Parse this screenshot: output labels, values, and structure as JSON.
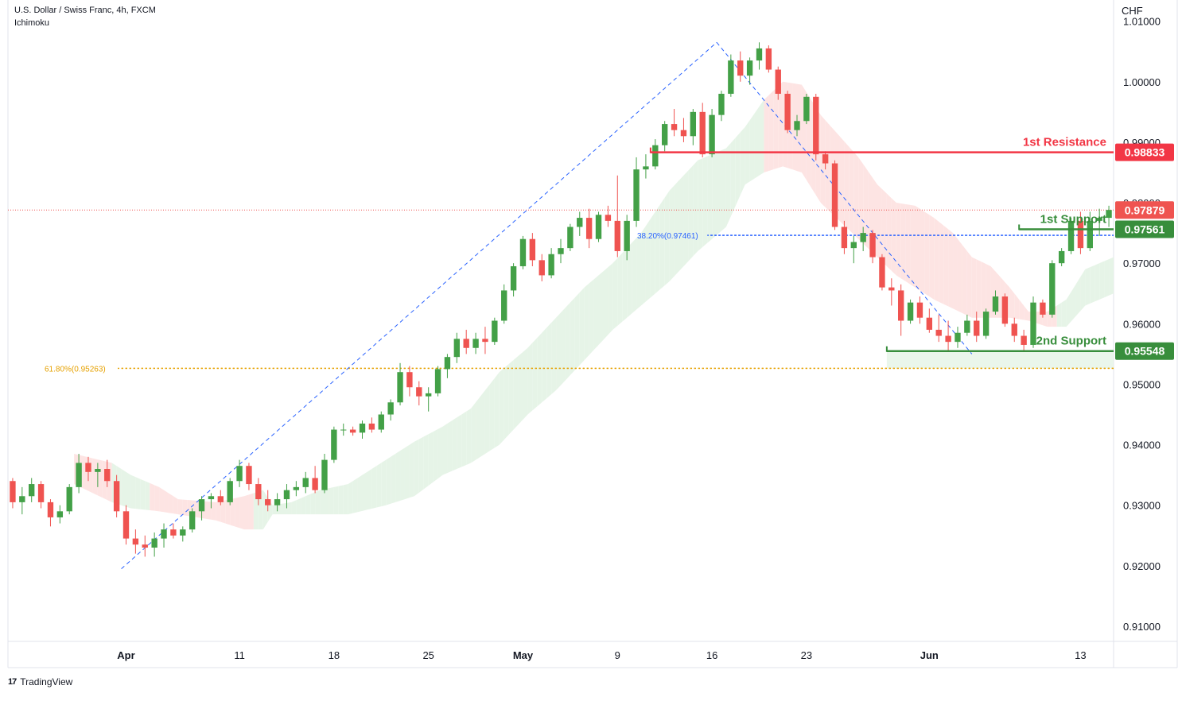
{
  "header": {
    "symbol_line": "U.S. Dollar / Swiss Franc, 4h, FXCM",
    "indicator": "Ichimoku"
  },
  "footer": {
    "brand": "TradingView"
  },
  "colors": {
    "bull": "#43a047",
    "bear": "#ef5350",
    "resistance": "#f23645",
    "support": "#388e3c",
    "fib382": "#2962ff",
    "fib618": "#e6a100",
    "trend": "#2962ff",
    "cloud_bull": "#e6f4e7",
    "cloud_bear": "#fde4e3",
    "last_price": "#ef5350"
  },
  "chart_data": {
    "type": "candlestick",
    "currency": "CHF",
    "ylim": [
      0.9075,
      1.0135
    ],
    "y_ticks": [
      "1.01000",
      "1.00000",
      "0.99000",
      "0.98000",
      "0.97000",
      "0.96000",
      "0.95000",
      "0.94000",
      "0.93000",
      "0.92000",
      "0.91000"
    ],
    "y_tick_values": [
      1.01,
      1.0,
      0.99,
      0.98,
      0.97,
      0.96,
      0.95,
      0.94,
      0.93,
      0.92,
      0.91
    ],
    "x_range": [
      0,
      117
    ],
    "x_ticks": [
      {
        "label": "Apr",
        "x": 12.5,
        "bold": true
      },
      {
        "label": "11",
        "x": 24.5,
        "bold": false
      },
      {
        "label": "18",
        "x": 34.5,
        "bold": false
      },
      {
        "label": "25",
        "x": 44.5,
        "bold": false
      },
      {
        "label": "May",
        "x": 54.5,
        "bold": true
      },
      {
        "label": "9",
        "x": 64.5,
        "bold": false
      },
      {
        "label": "16",
        "x": 74.5,
        "bold": false
      },
      {
        "label": "23",
        "x": 84.5,
        "bold": false
      },
      {
        "label": "Jun",
        "x": 97.5,
        "bold": true
      },
      {
        "label": "13",
        "x": 113.5,
        "bold": false
      }
    ],
    "candles": [
      [
        0.934,
        0.9345,
        0.9295,
        0.9305
      ],
      [
        0.9305,
        0.933,
        0.9285,
        0.9315
      ],
      [
        0.9315,
        0.9345,
        0.9305,
        0.9335
      ],
      [
        0.9335,
        0.934,
        0.9295,
        0.9305
      ],
      [
        0.9305,
        0.931,
        0.9265,
        0.928
      ],
      [
        0.928,
        0.93,
        0.927,
        0.929
      ],
      [
        0.929,
        0.9335,
        0.9285,
        0.933
      ],
      [
        0.933,
        0.9385,
        0.932,
        0.937
      ],
      [
        0.937,
        0.938,
        0.934,
        0.9355
      ],
      [
        0.9355,
        0.937,
        0.933,
        0.936
      ],
      [
        0.936,
        0.9375,
        0.933,
        0.934
      ],
      [
        0.934,
        0.935,
        0.928,
        0.929
      ],
      [
        0.929,
        0.93,
        0.9235,
        0.9245
      ],
      [
        0.9245,
        0.926,
        0.922,
        0.9235
      ],
      [
        0.9235,
        0.925,
        0.9215,
        0.923
      ],
      [
        0.923,
        0.9255,
        0.9215,
        0.9245
      ],
      [
        0.9245,
        0.927,
        0.923,
        0.926
      ],
      [
        0.926,
        0.927,
        0.9245,
        0.925
      ],
      [
        0.925,
        0.9265,
        0.924,
        0.926
      ],
      [
        0.926,
        0.9295,
        0.9255,
        0.929
      ],
      [
        0.929,
        0.9315,
        0.9275,
        0.931
      ],
      [
        0.931,
        0.932,
        0.9295,
        0.9315
      ],
      [
        0.9315,
        0.9325,
        0.93,
        0.9305
      ],
      [
        0.9305,
        0.9345,
        0.93,
        0.934
      ],
      [
        0.934,
        0.9375,
        0.933,
        0.9365
      ],
      [
        0.9365,
        0.937,
        0.9325,
        0.9335
      ],
      [
        0.9335,
        0.9345,
        0.93,
        0.931
      ],
      [
        0.931,
        0.9325,
        0.929,
        0.93
      ],
      [
        0.93,
        0.932,
        0.929,
        0.931
      ],
      [
        0.931,
        0.9335,
        0.9295,
        0.9325
      ],
      [
        0.9325,
        0.934,
        0.9315,
        0.933
      ],
      [
        0.933,
        0.9355,
        0.932,
        0.9345
      ],
      [
        0.9345,
        0.9365,
        0.932,
        0.9325
      ],
      [
        0.9325,
        0.9385,
        0.932,
        0.9375
      ],
      [
        0.9375,
        0.943,
        0.937,
        0.9425
      ],
      [
        0.9425,
        0.9435,
        0.9415,
        0.9425
      ],
      [
        0.9425,
        0.943,
        0.9415,
        0.942
      ],
      [
        0.942,
        0.944,
        0.941,
        0.9435
      ],
      [
        0.9435,
        0.9445,
        0.942,
        0.9425
      ],
      [
        0.9425,
        0.9455,
        0.942,
        0.945
      ],
      [
        0.945,
        0.9475,
        0.944,
        0.947
      ],
      [
        0.947,
        0.9535,
        0.9465,
        0.952
      ],
      [
        0.952,
        0.953,
        0.948,
        0.9495
      ],
      [
        0.9495,
        0.9505,
        0.9465,
        0.948
      ],
      [
        0.948,
        0.9495,
        0.9455,
        0.9485
      ],
      [
        0.9485,
        0.953,
        0.948,
        0.9525
      ],
      [
        0.9525,
        0.955,
        0.951,
        0.9545
      ],
      [
        0.9545,
        0.9585,
        0.9535,
        0.9575
      ],
      [
        0.9575,
        0.959,
        0.955,
        0.956
      ],
      [
        0.956,
        0.9585,
        0.955,
        0.9575
      ],
      [
        0.9575,
        0.9595,
        0.955,
        0.957
      ],
      [
        0.957,
        0.961,
        0.9565,
        0.9605
      ],
      [
        0.9605,
        0.9665,
        0.96,
        0.9655
      ],
      [
        0.9655,
        0.97,
        0.9645,
        0.9695
      ],
      [
        0.9695,
        0.9745,
        0.969,
        0.974
      ],
      [
        0.974,
        0.975,
        0.9695,
        0.9705
      ],
      [
        0.9705,
        0.9715,
        0.967,
        0.968
      ],
      [
        0.968,
        0.9725,
        0.9675,
        0.9715
      ],
      [
        0.9715,
        0.974,
        0.97,
        0.9725
      ],
      [
        0.9725,
        0.9765,
        0.972,
        0.976
      ],
      [
        0.976,
        0.9785,
        0.9745,
        0.9775
      ],
      [
        0.9775,
        0.979,
        0.9725,
        0.974
      ],
      [
        0.974,
        0.9785,
        0.9735,
        0.978
      ],
      [
        0.978,
        0.9795,
        0.976,
        0.977
      ],
      [
        0.977,
        0.9845,
        0.971,
        0.972
      ],
      [
        0.972,
        0.978,
        0.9705,
        0.977
      ],
      [
        0.977,
        0.9875,
        0.976,
        0.9855
      ],
      [
        0.9855,
        0.988,
        0.984,
        0.986
      ],
      [
        0.986,
        0.9905,
        0.9855,
        0.9895
      ],
      [
        0.9895,
        0.9935,
        0.9885,
        0.993
      ],
      [
        0.993,
        0.9955,
        0.991,
        0.992
      ],
      [
        0.992,
        0.994,
        0.99,
        0.991
      ],
      [
        0.991,
        0.9955,
        0.9895,
        0.995
      ],
      [
        0.995,
        0.9965,
        0.9875,
        0.988
      ],
      [
        0.988,
        0.9955,
        0.9875,
        0.9945
      ],
      [
        0.9945,
        0.9985,
        0.9935,
        0.998
      ],
      [
        0.998,
        1.0045,
        0.9975,
        1.0035
      ],
      [
        1.0035,
        1.005,
        1.0,
        1.001
      ],
      [
        1.001,
        1.004,
        0.9995,
        1.0035
      ],
      [
        1.0035,
        1.0065,
        1.002,
        1.0055
      ],
      [
        1.0055,
        1.006,
        1.0015,
        1.002
      ],
      [
        1.002,
        1.0025,
        0.997,
        0.998
      ],
      [
        0.998,
        0.9985,
        0.9915,
        0.992
      ],
      [
        0.992,
        0.9945,
        0.991,
        0.9935
      ],
      [
        0.9935,
        0.998,
        0.993,
        0.9975
      ],
      [
        0.9975,
        0.998,
        0.987,
        0.988
      ],
      [
        0.988,
        0.9885,
        0.9855,
        0.9865
      ],
      [
        0.9865,
        0.987,
        0.9755,
        0.976
      ],
      [
        0.976,
        0.977,
        0.9715,
        0.9725
      ],
      [
        0.9725,
        0.9745,
        0.97,
        0.9735
      ],
      [
        0.9735,
        0.976,
        0.972,
        0.975
      ],
      [
        0.975,
        0.9755,
        0.97,
        0.971
      ],
      [
        0.971,
        0.9715,
        0.9655,
        0.966
      ],
      [
        0.966,
        0.9675,
        0.963,
        0.9655
      ],
      [
        0.9655,
        0.9665,
        0.958,
        0.9605
      ],
      [
        0.9605,
        0.964,
        0.96,
        0.9635
      ],
      [
        0.9635,
        0.9645,
        0.96,
        0.961
      ],
      [
        0.961,
        0.9625,
        0.9585,
        0.959
      ],
      [
        0.959,
        0.9615,
        0.957,
        0.958
      ],
      [
        0.958,
        0.9605,
        0.9555,
        0.957
      ],
      [
        0.957,
        0.9595,
        0.956,
        0.9585
      ],
      [
        0.9585,
        0.9615,
        0.958,
        0.9605
      ],
      [
        0.9605,
        0.962,
        0.957,
        0.958
      ],
      [
        0.958,
        0.9625,
        0.9575,
        0.962
      ],
      [
        0.962,
        0.9655,
        0.9615,
        0.9645
      ],
      [
        0.9645,
        0.965,
        0.9595,
        0.96
      ],
      [
        0.96,
        0.961,
        0.957,
        0.958
      ],
      [
        0.958,
        0.959,
        0.9555,
        0.9565
      ],
      [
        0.9565,
        0.9645,
        0.956,
        0.9635
      ],
      [
        0.9635,
        0.964,
        0.961,
        0.9615
      ],
      [
        0.9615,
        0.9705,
        0.961,
        0.97
      ],
      [
        0.97,
        0.9725,
        0.9695,
        0.972
      ],
      [
        0.972,
        0.9775,
        0.9715,
        0.977
      ],
      [
        0.977,
        0.9785,
        0.9715,
        0.9725
      ],
      [
        0.9725,
        0.9785,
        0.972,
        0.977
      ],
      [
        0.977,
        0.979,
        0.9745,
        0.9775
      ],
      [
        0.9775,
        0.9795,
        0.976,
        0.9788
      ]
    ],
    "trendlines": [
      {
        "from": [
          12,
          0.9195
        ],
        "to": [
          75,
          1.0065
        ]
      },
      {
        "from": [
          75,
          1.0065
        ],
        "to": [
          102,
          0.955
        ]
      }
    ],
    "cloud": {
      "upper": [
        [
          7,
          0.9385
        ],
        [
          11,
          0.937
        ],
        [
          13,
          0.935
        ],
        [
          16,
          0.933
        ],
        [
          18,
          0.931
        ],
        [
          22,
          0.9305
        ],
        [
          25,
          0.9315
        ],
        [
          27,
          0.9325
        ],
        [
          28,
          0.93
        ],
        [
          30,
          0.9305
        ],
        [
          33,
          0.9325
        ],
        [
          36,
          0.9335
        ],
        [
          40,
          0.9375
        ],
        [
          43,
          0.9405
        ],
        [
          46,
          0.943
        ],
        [
          49,
          0.946
        ],
        [
          52,
          0.952
        ],
        [
          55,
          0.956
        ],
        [
          58,
          0.961
        ],
        [
          61,
          0.966
        ],
        [
          64,
          0.97
        ],
        [
          67,
          0.975
        ],
        [
          70,
          0.982
        ],
        [
          73,
          0.987
        ],
        [
          76,
          0.989
        ],
        [
          78,
          0.9925
        ],
        [
          80,
          0.997
        ],
        [
          82,
          1.0
        ],
        [
          84,
          0.9995
        ],
        [
          86,
          0.9945
        ],
        [
          88,
          0.991
        ],
        [
          90,
          0.9875
        ],
        [
          92,
          0.983
        ],
        [
          94,
          0.98
        ],
        [
          96,
          0.9795
        ],
        [
          98,
          0.9775
        ],
        [
          100,
          0.975
        ],
        [
          102,
          0.971
        ],
        [
          104,
          0.9695
        ],
        [
          106,
          0.966
        ],
        [
          108,
          0.962
        ],
        [
          110,
          0.962
        ],
        [
          112,
          0.964
        ],
        [
          114,
          0.969
        ],
        [
          117,
          0.971
        ]
      ],
      "lower": [
        [
          7,
          0.9335
        ],
        [
          11,
          0.9305
        ],
        [
          13,
          0.9295
        ],
        [
          16,
          0.929
        ],
        [
          18,
          0.9285
        ],
        [
          22,
          0.9275
        ],
        [
          25,
          0.926
        ],
        [
          27,
          0.926
        ],
        [
          28,
          0.9285
        ],
        [
          30,
          0.9285
        ],
        [
          33,
          0.9285
        ],
        [
          36,
          0.9285
        ],
        [
          40,
          0.93
        ],
        [
          43,
          0.9315
        ],
        [
          46,
          0.935
        ],
        [
          49,
          0.937
        ],
        [
          52,
          0.94
        ],
        [
          55,
          0.945
        ],
        [
          58,
          0.949
        ],
        [
          61,
          0.954
        ],
        [
          64,
          0.959
        ],
        [
          67,
          0.963
        ],
        [
          70,
          0.967
        ],
        [
          73,
          0.972
        ],
        [
          76,
          0.976
        ],
        [
          78,
          0.983
        ],
        [
          80,
          0.985
        ],
        [
          82,
          0.986
        ],
        [
          84,
          0.985
        ],
        [
          86,
          0.98
        ],
        [
          88,
          0.977
        ],
        [
          90,
          0.974
        ],
        [
          92,
          0.971
        ],
        [
          94,
          0.968
        ],
        [
          96,
          0.966
        ],
        [
          98,
          0.964
        ],
        [
          100,
          0.9625
        ],
        [
          102,
          0.961
        ],
        [
          104,
          0.961
        ],
        [
          106,
          0.961
        ],
        [
          108,
          0.9605
        ],
        [
          110,
          0.9595
        ],
        [
          112,
          0.9595
        ],
        [
          114,
          0.963
        ],
        [
          117,
          0.965
        ]
      ],
      "bearish_ranges": [
        [
          7,
          11
        ],
        [
          15,
          26
        ],
        [
          80,
          111
        ]
      ]
    },
    "levels": [
      {
        "name": "1st Resistance",
        "value_label": "0.98833",
        "value": 0.98833,
        "x_start": 68,
        "kind": "resistance"
      },
      {
        "name": "1st Support",
        "value_label": "0.97561",
        "value": 0.97561,
        "x_start": 107,
        "kind": "support"
      },
      {
        "name": "2nd Support",
        "value_label": "0.95548",
        "value": 0.95548,
        "x_start": 93,
        "kind": "support"
      }
    ],
    "fib_levels": [
      {
        "label": "38.20%(0.97461)",
        "value": 0.97461,
        "x_start": 74,
        "x_end": 117,
        "kind": "fib382"
      },
      {
        "label": "61.80%(0.95263)",
        "value": 0.95263,
        "x_start": 12,
        "x_end": 117,
        "kind": "fib618"
      }
    ],
    "zones": [
      {
        "y_top": 0.95548,
        "y_bottom": 0.95263,
        "x_start": 93,
        "x_end": 117
      }
    ],
    "last_price": {
      "value": 0.97879,
      "label": "0.97879"
    }
  }
}
